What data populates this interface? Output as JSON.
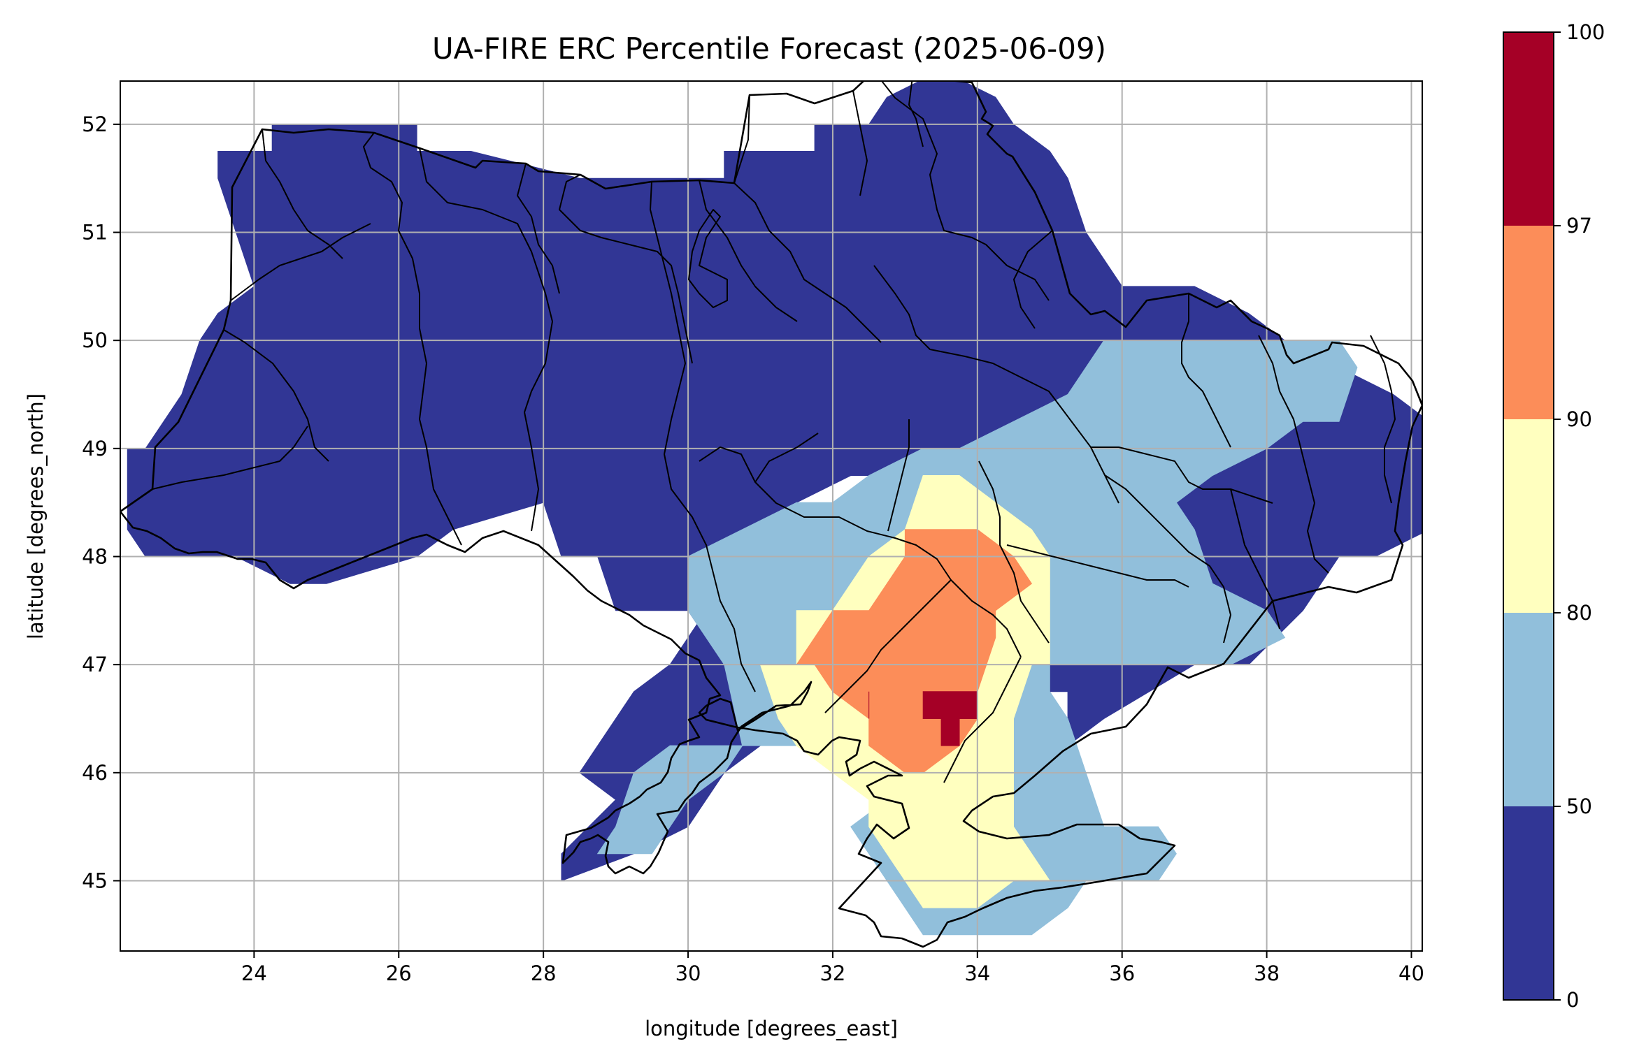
{
  "title": "UA-FIRE ERC Percentile Forecast (2025-06-09)",
  "map": {
    "xlabel": "longitude [degrees_east]",
    "ylabel": "latitude [degrees_north]",
    "xlim": [
      22.15,
      40.15
    ],
    "ylim": [
      44.35,
      52.4
    ],
    "xticks": [
      "24",
      "26",
      "28",
      "30",
      "32",
      "34",
      "36",
      "38",
      "40"
    ],
    "yticks": [
      "45",
      "46",
      "47",
      "48",
      "49",
      "50",
      "51",
      "52"
    ],
    "grid": true,
    "colorbar": {
      "bounds": [
        0,
        50,
        80,
        90,
        97,
        100
      ],
      "labels": [
        "0",
        "50",
        "80",
        "90",
        "97",
        "100"
      ],
      "colors": [
        "#313695",
        "#91bfdb",
        "#ffffbf",
        "#fc8d59",
        "#a50026"
      ]
    }
  },
  "chart_data": {
    "type": "heatmap",
    "title": "UA-FIRE ERC Percentile Forecast (2025-06-09)",
    "xlabel": "longitude [degrees_east]",
    "ylabel": "latitude [degrees_north]",
    "xlim": [
      22.15,
      40.15
    ],
    "ylim": [
      44.35,
      52.4
    ],
    "grid": true,
    "colorbar_bounds": [
      0,
      50,
      80,
      90,
      97,
      100
    ],
    "class_legend": [
      "0-50",
      "50-80",
      "80-90",
      "90-97",
      "97-100"
    ],
    "regions": [
      {
        "class": "0-50",
        "polygon": [
          [
            22.15,
            48.9
          ],
          [
            22.6,
            48.9
          ],
          [
            22.8,
            49.2
          ],
          [
            23.0,
            49.5
          ],
          [
            23.3,
            49.9
          ],
          [
            23.6,
            50.2
          ],
          [
            23.9,
            50.5
          ],
          [
            23.8,
            50.9
          ],
          [
            23.6,
            51.4
          ],
          [
            23.6,
            51.8
          ],
          [
            24.2,
            51.8
          ],
          [
            24.2,
            52.1
          ],
          [
            26.3,
            52.1
          ],
          [
            26.3,
            51.8
          ],
          [
            27.0,
            51.7
          ],
          [
            28.5,
            51.6
          ],
          [
            30.5,
            51.6
          ],
          [
            30.6,
            51.85
          ],
          [
            31.7,
            51.85
          ],
          [
            31.7,
            52.1
          ],
          [
            32.5,
            52.1
          ],
          [
            32.8,
            52.3
          ],
          [
            33.4,
            52.4
          ],
          [
            34.3,
            52.3
          ],
          [
            34.4,
            52.1
          ],
          [
            34.5,
            51.9
          ],
          [
            35.1,
            51.7
          ],
          [
            35.3,
            51.5
          ],
          [
            35.5,
            51.0
          ],
          [
            35.9,
            50.6
          ],
          [
            36.4,
            50.4
          ],
          [
            37.0,
            50.4
          ],
          [
            37.7,
            50.2
          ],
          [
            38.3,
            50.1
          ],
          [
            38.4,
            49.9
          ],
          [
            39.1,
            49.7
          ],
          [
            39.8,
            49.6
          ],
          [
            40.15,
            49.3
          ],
          [
            40.15,
            48.2
          ],
          [
            39.6,
            48.0
          ],
          [
            39.0,
            47.9
          ],
          [
            38.5,
            47.4
          ],
          [
            37.8,
            47.0
          ],
          [
            37.0,
            46.9
          ],
          [
            35.8,
            46.4
          ],
          [
            35.2,
            46.2
          ],
          [
            35.2,
            46.7
          ],
          [
            34.7,
            46.7
          ],
          [
            34.7,
            47.4
          ],
          [
            34.4,
            47.9
          ],
          [
            34.4,
            48.4
          ],
          [
            33.6,
            48.7
          ],
          [
            32.3,
            48.7
          ],
          [
            31.6,
            48.5
          ],
          [
            31.0,
            48.1
          ],
          [
            30.3,
            47.6
          ],
          [
            30.0,
            47.2
          ],
          [
            29.7,
            46.9
          ],
          [
            29.3,
            46.8
          ],
          [
            28.9,
            46.5
          ],
          [
            28.6,
            46.0
          ],
          [
            28.9,
            45.7
          ],
          [
            28.3,
            45.3
          ],
          [
            28.2,
            45.1
          ],
          [
            29.3,
            45.2
          ],
          [
            30.0,
            45.4
          ],
          [
            30.5,
            46.0
          ],
          [
            30.9,
            46.3
          ],
          [
            30.4,
            46.9
          ],
          [
            29.9,
            47.5
          ],
          [
            29.0,
            47.6
          ],
          [
            28.7,
            48.0
          ],
          [
            28.2,
            48.1
          ],
          [
            27.9,
            48.4
          ],
          [
            26.7,
            48.2
          ],
          [
            26.3,
            47.9
          ],
          [
            24.9,
            47.7
          ],
          [
            24.4,
            47.8
          ],
          [
            23.8,
            47.9
          ],
          [
            22.9,
            47.9
          ],
          [
            22.4,
            48.1
          ],
          [
            22.15,
            48.3
          ]
        ]
      },
      {
        "class": "50-80",
        "polygon": [
          [
            30.1,
            48.05
          ],
          [
            30.7,
            48.25
          ],
          [
            31.4,
            48.4
          ],
          [
            32.0,
            48.45
          ],
          [
            32.5,
            48.85
          ],
          [
            33.2,
            49.0
          ],
          [
            33.8,
            49.1
          ],
          [
            34.6,
            49.35
          ],
          [
            35.3,
            49.5
          ],
          [
            35.8,
            49.9
          ],
          [
            36.6,
            50.1
          ],
          [
            37.2,
            49.95
          ],
          [
            37.9,
            49.9
          ],
          [
            38.3,
            50.0
          ],
          [
            38.9,
            49.9
          ],
          [
            39.3,
            49.7
          ],
          [
            39.1,
            49.3
          ],
          [
            38.5,
            49.2
          ],
          [
            37.9,
            49.0
          ],
          [
            37.2,
            48.7
          ],
          [
            36.7,
            48.6
          ],
          [
            36.9,
            48.2
          ],
          [
            37.2,
            47.8
          ],
          [
            37.9,
            47.6
          ],
          [
            38.2,
            47.2
          ],
          [
            37.6,
            47.0
          ],
          [
            36.6,
            47.05
          ],
          [
            35.6,
            47.0
          ],
          [
            34.9,
            47.05
          ],
          [
            34.9,
            46.8
          ],
          [
            35.3,
            46.4
          ],
          [
            35.4,
            46.05
          ],
          [
            35.8,
            45.6
          ],
          [
            36.5,
            45.4
          ],
          [
            36.8,
            45.2
          ],
          [
            36.4,
            44.95
          ],
          [
            35.6,
            44.95
          ],
          [
            35.3,
            44.75
          ],
          [
            34.8,
            44.55
          ],
          [
            34.3,
            44.4
          ],
          [
            33.3,
            44.5
          ],
          [
            33.0,
            44.7
          ],
          [
            32.8,
            45.1
          ],
          [
            32.4,
            45.3
          ],
          [
            32.3,
            45.5
          ],
          [
            32.8,
            45.75
          ],
          [
            33.6,
            45.9
          ],
          [
            34.2,
            46.1
          ],
          [
            34.6,
            46.2
          ],
          [
            33.3,
            46.5
          ],
          [
            32.6,
            46.6
          ],
          [
            32.2,
            46.5
          ],
          [
            31.8,
            46.3
          ],
          [
            31.3,
            46.3
          ],
          [
            31.0,
            46.2
          ],
          [
            30.5,
            46.3
          ],
          [
            29.8,
            46.2
          ],
          [
            29.3,
            45.95
          ],
          [
            28.9,
            45.6
          ],
          [
            28.8,
            45.2
          ],
          [
            29.6,
            45.2
          ],
          [
            29.9,
            45.7
          ],
          [
            30.4,
            46.1
          ],
          [
            30.8,
            46.3
          ],
          [
            30.4,
            46.9
          ],
          [
            30.1,
            47.4
          ]
        ]
      },
      {
        "class": "80-90",
        "polygon": [
          [
            32.9,
            48.3
          ],
          [
            33.3,
            48.65
          ],
          [
            33.8,
            48.8
          ],
          [
            34.3,
            48.55
          ],
          [
            34.7,
            48.35
          ],
          [
            34.9,
            48.0
          ],
          [
            35.1,
            47.6
          ],
          [
            35.0,
            47.1
          ],
          [
            34.8,
            46.9
          ],
          [
            34.6,
            46.4
          ],
          [
            34.4,
            45.9
          ],
          [
            34.6,
            45.4
          ],
          [
            34.9,
            45.1
          ],
          [
            34.6,
            44.9
          ],
          [
            34.1,
            44.7
          ],
          [
            33.7,
            44.7
          ],
          [
            33.2,
            44.85
          ],
          [
            32.9,
            45.05
          ],
          [
            32.7,
            45.2
          ],
          [
            32.6,
            45.5
          ],
          [
            32.5,
            45.75
          ],
          [
            32.1,
            45.95
          ],
          [
            31.6,
            46.3
          ],
          [
            31.2,
            46.6
          ],
          [
            31.0,
            46.9
          ],
          [
            31.4,
            47.1
          ],
          [
            31.6,
            47.4
          ],
          [
            32.0,
            47.6
          ],
          [
            32.5,
            47.9
          ]
        ]
      },
      {
        "class": "90-97",
        "polygon": [
          [
            33.0,
            48.3
          ],
          [
            33.4,
            48.35
          ],
          [
            33.9,
            48.3
          ],
          [
            34.6,
            48.1
          ],
          [
            34.7,
            47.7
          ],
          [
            34.3,
            47.6
          ],
          [
            34.2,
            47.3
          ],
          [
            34.1,
            46.8
          ],
          [
            34.0,
            46.4
          ],
          [
            33.7,
            46.15
          ],
          [
            33.2,
            46.1
          ],
          [
            32.9,
            46.05
          ],
          [
            32.6,
            46.25
          ],
          [
            32.4,
            46.5
          ],
          [
            32.1,
            46.8
          ],
          [
            31.8,
            47.0
          ],
          [
            31.5,
            47.1
          ],
          [
            31.9,
            47.5
          ],
          [
            32.2,
            47.5
          ],
          [
            32.6,
            47.6
          ],
          [
            33.0,
            47.9
          ]
        ]
      },
      {
        "class": "97-100",
        "polygon": [
          [
            33.15,
            46.8
          ],
          [
            33.9,
            46.8
          ],
          [
            33.9,
            46.5
          ],
          [
            33.7,
            46.5
          ],
          [
            33.7,
            46.3
          ],
          [
            33.5,
            46.3
          ],
          [
            33.5,
            46.5
          ],
          [
            33.15,
            46.5
          ]
        ]
      },
      {
        "class": "97-100",
        "polygon": [
          [
            32.4,
            46.82
          ],
          [
            32.6,
            46.82
          ],
          [
            32.6,
            46.6
          ],
          [
            32.4,
            46.6
          ]
        ]
      }
    ]
  }
}
